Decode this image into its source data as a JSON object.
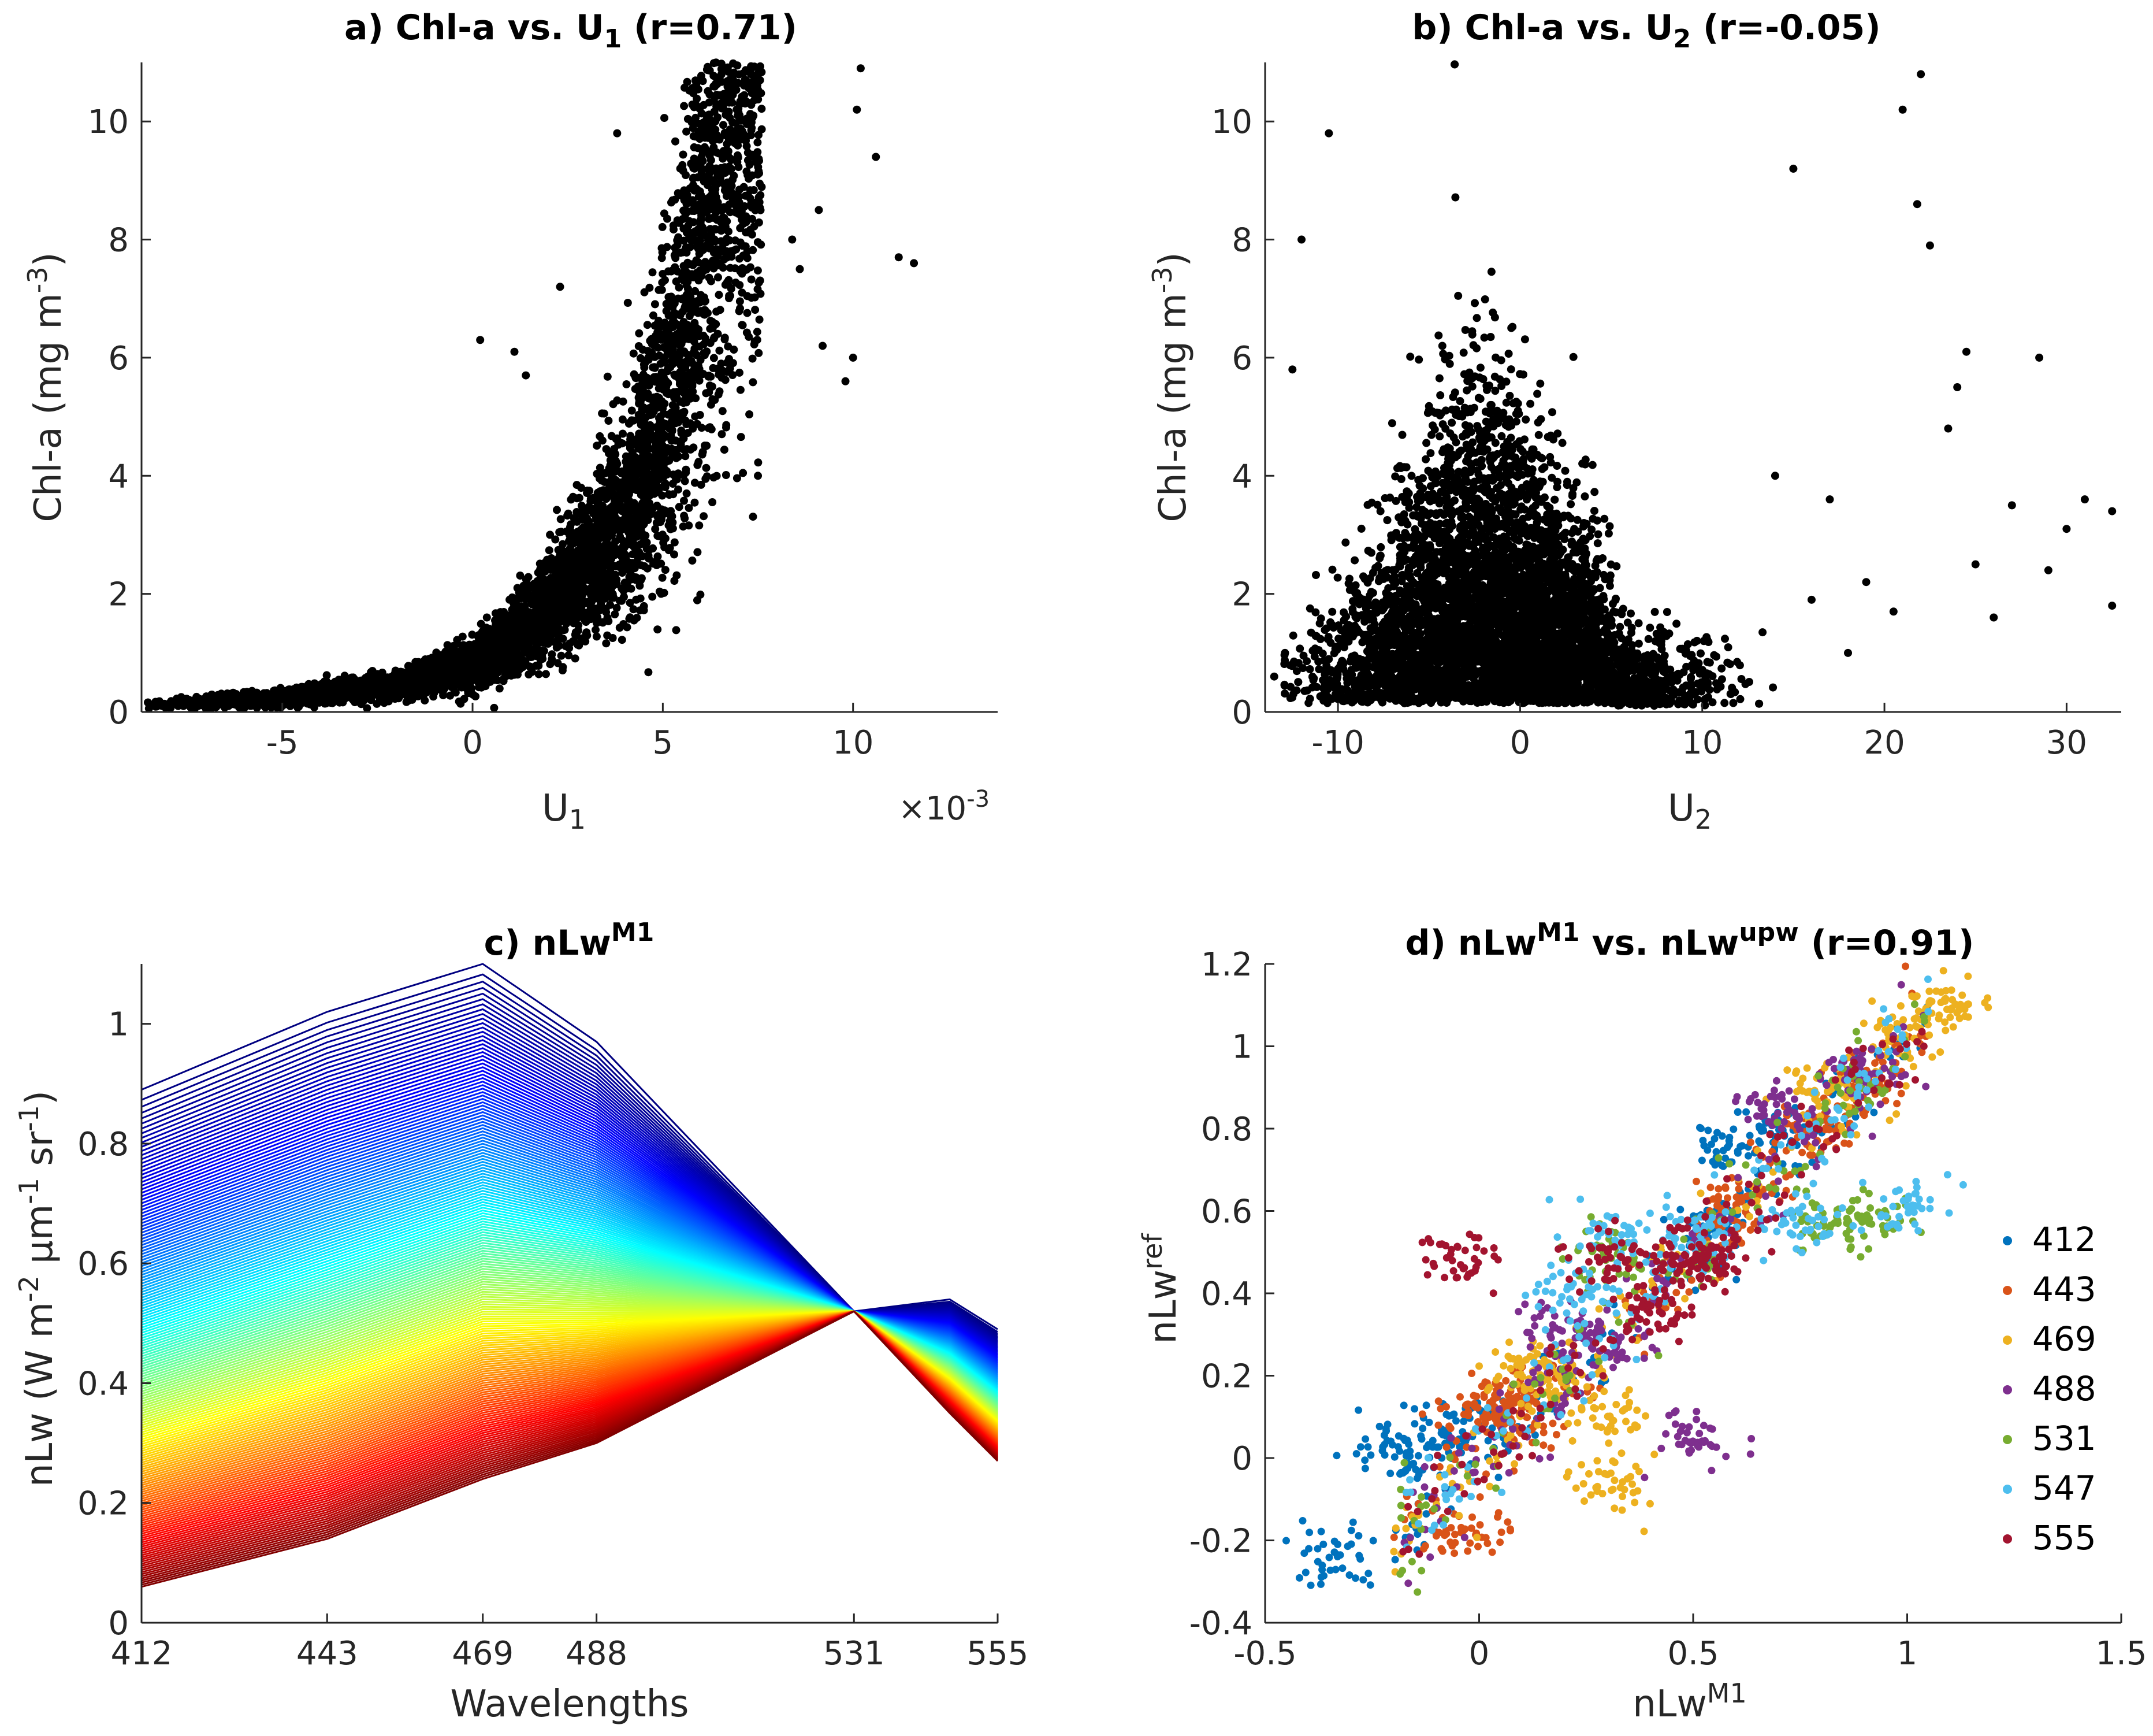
{
  "chart_data": [
    {
      "id": "a",
      "type": "scatter",
      "title": "a) Chl-a vs. U",
      "title_sub": "1",
      "title_suffix": " (r=0.71)",
      "xlabel": "U",
      "xlabel_sub": "1",
      "ylabel": "Chl-a (mg m",
      "ylabel_sup": "-3",
      "ylabel_close": ")",
      "x_exponent_label": "×10",
      "x_exponent_sup": "-3",
      "xlim": [
        -8.7,
        13.8
      ],
      "ylim": [
        0,
        11
      ],
      "xticks": [
        -5,
        0,
        5,
        10
      ],
      "xtick_labels": [
        "-5",
        "0",
        "5",
        "10"
      ],
      "yticks": [
        0,
        2,
        4,
        6,
        8,
        10
      ],
      "ytick_labels": [
        "0",
        "2",
        "4",
        "6",
        "8",
        "10"
      ],
      "marker_color": "#000000",
      "trend": {
        "form": "exponential",
        "x": [
          -8.5,
          -6,
          -4,
          -2,
          0,
          1,
          2,
          3,
          4,
          5,
          5.5,
          6,
          6.5,
          7
        ],
        "y": [
          0.12,
          0.2,
          0.3,
          0.45,
          0.8,
          1.2,
          1.8,
          2.5,
          3.4,
          5.0,
          6.3,
          7.9,
          9.5,
          11.0
        ]
      },
      "outliers": [
        [
          10.2,
          10.9
        ],
        [
          10.1,
          10.2
        ],
        [
          10.6,
          9.4
        ],
        [
          11.2,
          7.7
        ],
        [
          11.6,
          7.6
        ],
        [
          9.1,
          8.5
        ],
        [
          8.4,
          8.0
        ],
        [
          8.6,
          7.5
        ],
        [
          9.2,
          6.2
        ],
        [
          10.0,
          6.0
        ],
        [
          9.8,
          5.6
        ],
        [
          7.5,
          4.0
        ],
        [
          1.1,
          6.1
        ],
        [
          2.3,
          7.2
        ],
        [
          3.8,
          9.8
        ],
        [
          0.2,
          6.3
        ],
        [
          1.4,
          5.7
        ]
      ]
    },
    {
      "id": "b",
      "type": "scatter",
      "title": "b) Chl-a vs. U",
      "title_sub": "2",
      "title_suffix": " (r=-0.05)",
      "xlabel": "U",
      "xlabel_sub": "2",
      "ylabel": "Chl-a (mg m",
      "ylabel_sup": "-3",
      "ylabel_close": ")",
      "xlim": [
        -14,
        33
      ],
      "ylim": [
        0,
        11
      ],
      "xticks": [
        -10,
        0,
        10,
        20,
        30
      ],
      "xtick_labels": [
        "-10",
        "0",
        "10",
        "20",
        "30"
      ],
      "yticks": [
        0,
        2,
        4,
        6,
        8,
        10
      ],
      "ytick_labels": [
        "0",
        "2",
        "4",
        "6",
        "8",
        "10"
      ],
      "marker_color": "#000000",
      "outliers": [
        [
          21,
          10.2
        ],
        [
          22,
          10.8
        ],
        [
          21.8,
          8.6
        ],
        [
          22.5,
          7.9
        ],
        [
          24.5,
          6.1
        ],
        [
          28.5,
          6.0
        ],
        [
          31,
          3.6
        ],
        [
          32.5,
          3.4
        ],
        [
          32.5,
          1.8
        ],
        [
          30,
          3.1
        ],
        [
          29,
          2.4
        ],
        [
          25,
          2.5
        ],
        [
          26,
          1.6
        ],
        [
          23.5,
          4.8
        ],
        [
          20.5,
          1.7
        ],
        [
          18,
          1.0
        ],
        [
          17,
          3.6
        ],
        [
          19,
          2.2
        ],
        [
          27,
          3.5
        ],
        [
          24,
          5.5
        ],
        [
          -12.5,
          5.8
        ],
        [
          -13.5,
          0.6
        ],
        [
          -12,
          8.0
        ],
        [
          -11,
          1.5
        ],
        [
          -10.5,
          9.8
        ],
        [
          15,
          9.2
        ],
        [
          14,
          4.0
        ],
        [
          16,
          1.9
        ]
      ]
    },
    {
      "id": "c",
      "type": "line",
      "title": "c) nLw",
      "title_sup": "M1",
      "xlabel": "Wavelengths",
      "ylabel": "nLw (W m",
      "ylabel_sup1": "-2",
      "ylabel_mu": " μm",
      "ylabel_sup2": "-1",
      "ylabel_sr": " sr",
      "ylabel_sup3": "-1",
      "ylabel_close": ")",
      "x": [
        412,
        443,
        469,
        488,
        531,
        547,
        555
      ],
      "xlim": [
        412,
        555
      ],
      "ylim": [
        0,
        1.1
      ],
      "xticks": [
        412,
        443,
        469,
        488,
        531,
        555
      ],
      "xtick_labels": [
        "412",
        "443",
        "469",
        "488",
        "531",
        "555"
      ],
      "yticks": [
        0,
        0.2,
        0.4,
        0.6,
        0.8,
        1
      ],
      "ytick_labels": [
        "0",
        "0.2",
        "0.4",
        "0.6",
        "0.8",
        "1"
      ],
      "envelope": {
        "upper": [
          0.89,
          1.02,
          1.1,
          0.97,
          0.52,
          0.54,
          0.49
        ],
        "lower": [
          0.06,
          0.14,
          0.24,
          0.3,
          0.52,
          0.35,
          0.27
        ]
      },
      "colormap": "jet"
    },
    {
      "id": "d",
      "type": "scatter",
      "title": "d) nLw",
      "title_sup": "M1",
      "title_mid": " vs. nLw",
      "title_sup2": "upw",
      "title_suffix": " (r=0.91)",
      "xlabel": "nLw",
      "xlabel_sup": "M1",
      "ylabel": "nLw",
      "ylabel_sup": "ref",
      "xlim": [
        -0.5,
        1.5
      ],
      "ylim": [
        -0.4,
        1.2
      ],
      "xticks": [
        -0.5,
        0,
        0.5,
        1,
        1.5
      ],
      "xtick_labels": [
        "-0.5",
        "0",
        "0.5",
        "1",
        "1.5"
      ],
      "yticks": [
        -0.4,
        -0.2,
        0,
        0.2,
        0.4,
        0.6,
        0.8,
        1,
        1.2
      ],
      "ytick_labels": [
        "-0.4",
        "-0.2",
        "0",
        "0.2",
        "0.4",
        "0.6",
        "0.8",
        "1",
        "1.2"
      ],
      "series": [
        {
          "name": "412",
          "color": "#0072BD",
          "center": [
            [
              -0.35,
              -0.24
            ],
            [
              -0.2,
              0.02
            ],
            [
              -0.1,
              0.04
            ],
            [
              0.0,
              0.08
            ],
            [
              0.55,
              0.58
            ],
            [
              0.6,
              0.75
            ],
            [
              0.7,
              0.8
            ]
          ]
        },
        {
          "name": "443",
          "color": "#D95319",
          "center": [
            [
              -0.02,
              -0.18
            ],
            [
              0.0,
              0.12
            ],
            [
              0.05,
              0.12
            ],
            [
              0.1,
              0.1
            ],
            [
              0.6,
              0.63
            ],
            [
              0.8,
              0.8
            ],
            [
              0.9,
              0.92
            ]
          ]
        },
        {
          "name": "469",
          "color": "#EDB120",
          "center": [
            [
              0.1,
              0.2
            ],
            [
              0.2,
              0.2
            ],
            [
              0.3,
              0.1
            ],
            [
              0.33,
              -0.07
            ],
            [
              0.8,
              0.9
            ],
            [
              1.0,
              1.05
            ],
            [
              1.1,
              1.1
            ]
          ]
        },
        {
          "name": "488",
          "color": "#7E2F8E",
          "center": [
            [
              0.2,
              0.3
            ],
            [
              0.3,
              0.28
            ],
            [
              0.5,
              0.05
            ],
            [
              0.7,
              0.85
            ],
            [
              0.9,
              0.95
            ]
          ]
        },
        {
          "name": "531",
          "color": "#77AC30",
          "center": [
            [
              0.3,
              0.48
            ],
            [
              0.8,
              0.57
            ],
            [
              0.92,
              0.57
            ]
          ]
        },
        {
          "name": "547",
          "color": "#4DBEEE",
          "center": [
            [
              0.3,
              0.54
            ],
            [
              0.5,
              0.54
            ],
            [
              0.75,
              0.57
            ],
            [
              1.0,
              0.61
            ],
            [
              0.2,
              0.4
            ]
          ]
        },
        {
          "name": "555",
          "color": "#A2142F",
          "center": [
            [
              -0.05,
              0.49
            ],
            [
              0.3,
              0.49
            ],
            [
              0.5,
              0.5
            ],
            [
              0.55,
              0.48
            ],
            [
              0.4,
              0.35
            ]
          ]
        }
      ]
    }
  ]
}
